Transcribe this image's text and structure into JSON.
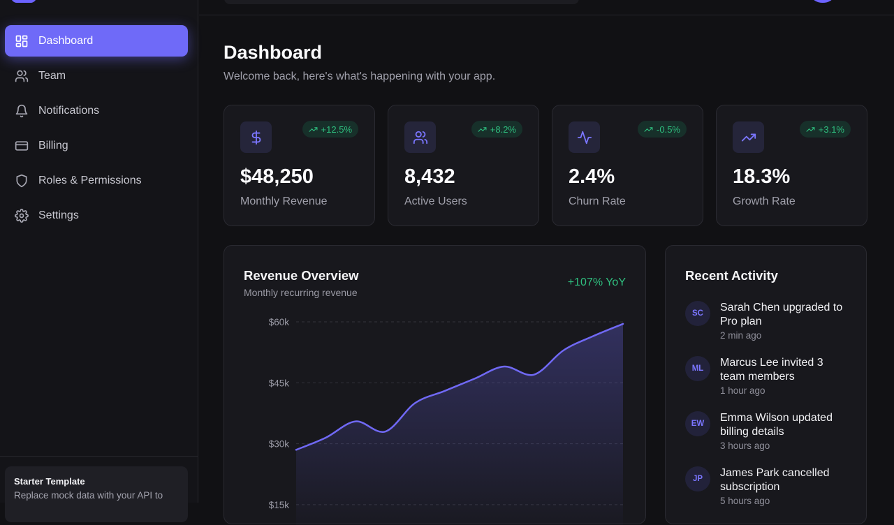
{
  "sidebar": {
    "items": [
      {
        "label": "Dashboard",
        "icon": "layout-grid-icon",
        "active": true
      },
      {
        "label": "Team",
        "icon": "users-icon"
      },
      {
        "label": "Notifications",
        "icon": "bell-icon"
      },
      {
        "label": "Billing",
        "icon": "credit-card-icon"
      },
      {
        "label": "Roles & Permissions",
        "icon": "shield-icon"
      },
      {
        "label": "Settings",
        "icon": "gear-icon"
      }
    ],
    "template_card": {
      "title": "Starter Template",
      "description": "Replace mock data with your API to"
    }
  },
  "header": {
    "title": "Dashboard",
    "subtitle": "Welcome back, here's what's happening with your app."
  },
  "stats": [
    {
      "icon": "dollar-icon",
      "change": "+12.5%",
      "value": "$48,250",
      "label": "Monthly Revenue"
    },
    {
      "icon": "users-icon",
      "change": "+8.2%",
      "value": "8,432",
      "label": "Active Users"
    },
    {
      "icon": "activity-icon",
      "change": "-0.5%",
      "value": "2.4%",
      "label": "Churn Rate"
    },
    {
      "icon": "trending-up-icon",
      "change": "+3.1%",
      "value": "18.3%",
      "label": "Growth Rate"
    }
  ],
  "revenue": {
    "title": "Revenue Overview",
    "subtitle": "Monthly recurring revenue",
    "yoy": "+107% YoY"
  },
  "chart_data": {
    "type": "area",
    "title": "Revenue Overview",
    "subtitle": "Monthly recurring revenue",
    "x": [
      0,
      1,
      2,
      3,
      4,
      5,
      6,
      7,
      8,
      9,
      10,
      11
    ],
    "values": [
      28500,
      31500,
      35500,
      33000,
      40000,
      43000,
      46000,
      49000,
      47000,
      53000,
      56500,
      59500
    ],
    "ylim": [
      10000,
      60000
    ],
    "yticks": [
      60000,
      45000,
      30000,
      15000
    ],
    "ytick_labels": [
      "$60k",
      "$45k",
      "$30k",
      "$15k"
    ],
    "grid": true,
    "line_color": "#7069f5"
  },
  "activity": {
    "title": "Recent Activity",
    "items": [
      {
        "initials": "SC",
        "text": "Sarah Chen upgraded to Pro plan",
        "time": "2 min ago"
      },
      {
        "initials": "ML",
        "text": "Marcus Lee invited 3 team members",
        "time": "1 hour ago"
      },
      {
        "initials": "EW",
        "text": "Emma Wilson updated billing details",
        "time": "3 hours ago"
      },
      {
        "initials": "JP",
        "text": "James Park cancelled subscription",
        "time": "5 hours ago"
      }
    ]
  },
  "colors": {
    "accent": "#6f6af8",
    "positive": "#2fbf7f",
    "background": "#111114",
    "card": "#18181d"
  }
}
